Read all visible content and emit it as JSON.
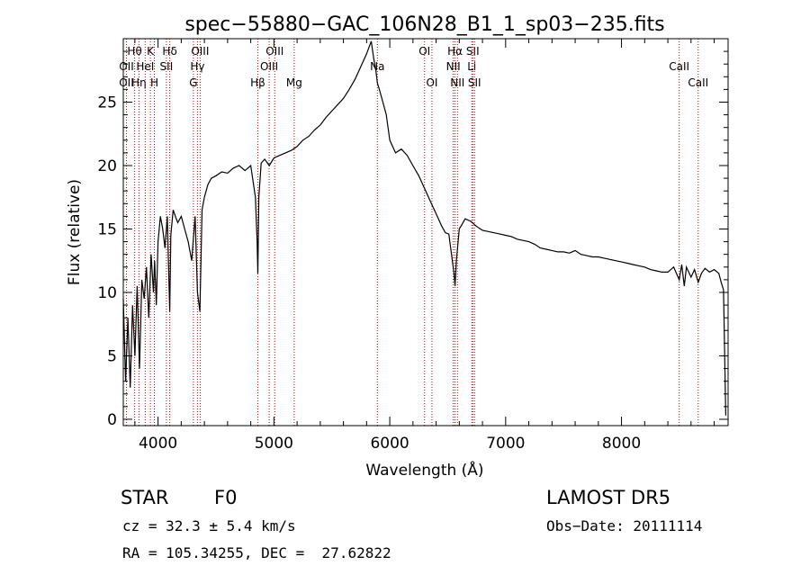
{
  "chart_data": {
    "type": "line",
    "title": "spec−55880−GAC_106N28_B1_1_sp03−235.fits",
    "xlabel": "Wavelength (Å)",
    "ylabel": "Flux (relative)",
    "xlim": [
      3700,
      8920
    ],
    "ylim": [
      -0.5,
      30
    ],
    "xticks": [
      4000,
      5000,
      6000,
      7000,
      8000
    ],
    "yticks": [
      0,
      5,
      10,
      15,
      20,
      25
    ],
    "series": [
      {
        "x": [
          3700,
          3720,
          3740,
          3760,
          3780,
          3800,
          3820,
          3840,
          3860,
          3880,
          3900,
          3920,
          3940,
          3960,
          3970,
          3985,
          4000,
          4020,
          4040,
          4060,
          4080,
          4101,
          4110,
          4130,
          4150,
          4170,
          4200,
          4230,
          4260,
          4290,
          4320,
          4340,
          4361,
          4380,
          4400,
          4430,
          4460,
          4500,
          4550,
          4600,
          4650,
          4700,
          4750,
          4800,
          4840,
          4855,
          4861,
          4870,
          4890,
          4920,
          4960,
          5000,
          5050,
          5100,
          5150,
          5200,
          5250,
          5300,
          5350,
          5400,
          5450,
          5500,
          5550,
          5600,
          5650,
          5700,
          5750,
          5800,
          5840,
          5860,
          5880,
          5893,
          5910,
          5940,
          5970,
          6000,
          6050,
          6100,
          6150,
          6200,
          6250,
          6300,
          6350,
          6400,
          6450,
          6480,
          6510,
          6540,
          6555,
          6563,
          6575,
          6600,
          6620,
          6650,
          6700,
          6750,
          6800,
          6850,
          6900,
          6950,
          7000,
          7050,
          7100,
          7150,
          7200,
          7250,
          7300,
          7350,
          7400,
          7450,
          7500,
          7550,
          7600,
          7650,
          7700,
          7750,
          7800,
          7850,
          7900,
          7950,
          8000,
          8050,
          8100,
          8150,
          8200,
          8250,
          8300,
          8350,
          8400,
          8450,
          8498,
          8520,
          8542,
          8560,
          8600,
          8630,
          8662,
          8690,
          8720,
          8760,
          8800,
          8840,
          8860,
          8880,
          8900
        ],
        "values": [
          9.5,
          3.0,
          8.0,
          2.5,
          9.0,
          5.0,
          10.5,
          4.0,
          11.0,
          9.5,
          12.0,
          8.0,
          13.0,
          10.0,
          12.5,
          9.0,
          14.0,
          16.0,
          15.0,
          13.5,
          16.0,
          8.5,
          14.5,
          16.5,
          16.0,
          15.5,
          16.0,
          15.0,
          14.0,
          12.5,
          16.0,
          10.0,
          8.5,
          16.5,
          17.5,
          18.5,
          19.0,
          19.2,
          19.5,
          19.4,
          19.8,
          20.0,
          19.6,
          20.0,
          17.5,
          14.0,
          11.5,
          17.5,
          20.2,
          20.5,
          20.0,
          20.6,
          20.8,
          21.0,
          21.2,
          21.5,
          22.0,
          22.3,
          22.8,
          23.2,
          23.8,
          24.3,
          24.8,
          25.3,
          26.0,
          26.8,
          27.8,
          28.8,
          29.8,
          28.5,
          27.5,
          26.5,
          26.0,
          25.0,
          24.0,
          22.0,
          21.0,
          21.3,
          20.8,
          20.0,
          19.2,
          18.2,
          17.2,
          16.2,
          15.2,
          14.7,
          14.6,
          12.5,
          11.5,
          10.5,
          12.5,
          15.0,
          15.3,
          15.8,
          15.6,
          15.2,
          14.9,
          14.8,
          14.7,
          14.6,
          14.5,
          14.4,
          14.2,
          14.1,
          14.0,
          13.8,
          13.5,
          13.4,
          13.3,
          13.2,
          13.2,
          13.1,
          13.3,
          13.0,
          12.9,
          12.8,
          12.8,
          12.7,
          12.6,
          12.5,
          12.4,
          12.3,
          12.2,
          12.1,
          12.0,
          11.8,
          11.7,
          11.6,
          11.6,
          12.0,
          11.0,
          12.2,
          10.5,
          12.0,
          11.2,
          11.8,
          10.8,
          11.5,
          11.9,
          11.6,
          11.8,
          11.5,
          10.8,
          10.2,
          0.3
        ]
      }
    ],
    "lines_top": [
      {
        "label": "Hθ",
        "wl": 3798
      },
      {
        "label": "K",
        "wl": 3934
      },
      {
        "label": "Hδ",
        "wl": 4101
      },
      {
        "label": "OIII",
        "wl": 4363
      },
      {
        "label": "OIII",
        "wl": 5007
      },
      {
        "label": "OI",
        "wl": 6300
      },
      {
        "label": "Hα",
        "wl": 6563
      },
      {
        "label": "SII",
        "wl": 6716
      }
    ],
    "lines_mid": [
      {
        "label": "OII",
        "wl": 3727
      },
      {
        "label": "HeI",
        "wl": 3889
      },
      {
        "label": "SII",
        "wl": 4072
      },
      {
        "label": "Hγ",
        "wl": 4340
      },
      {
        "label": "OIII",
        "wl": 4959
      },
      {
        "label": "Na",
        "wl": 5893
      },
      {
        "label": "NII",
        "wl": 6548
      },
      {
        "label": "Li",
        "wl": 6708
      },
      {
        "label": "CaII",
        "wl": 8498
      }
    ],
    "lines_low": [
      {
        "label": "OII",
        "wl": 3727
      },
      {
        "label": "Hη",
        "wl": 3835
      },
      {
        "label": "H",
        "wl": 3968
      },
      {
        "label": "G",
        "wl": 4305
      },
      {
        "label": "Hβ",
        "wl": 4861
      },
      {
        "label": "Mg",
        "wl": 5175
      },
      {
        "label": "OI",
        "wl": 6364
      },
      {
        "label": "NII",
        "wl": 6584
      },
      {
        "label": "SII",
        "wl": 6731
      },
      {
        "label": "CaII",
        "wl": 8662
      }
    ],
    "line_color": "#c00000",
    "curve_color": "#000000"
  },
  "info": {
    "class": "STAR",
    "subclass": "F0",
    "survey": "LAMOST DR5",
    "redshift": "cz = 32.3 ± 5.4 km/s",
    "obs_date": "Obs−Date: 20111114",
    "coords": "RA = 105.34255, DEC =  27.62822"
  }
}
